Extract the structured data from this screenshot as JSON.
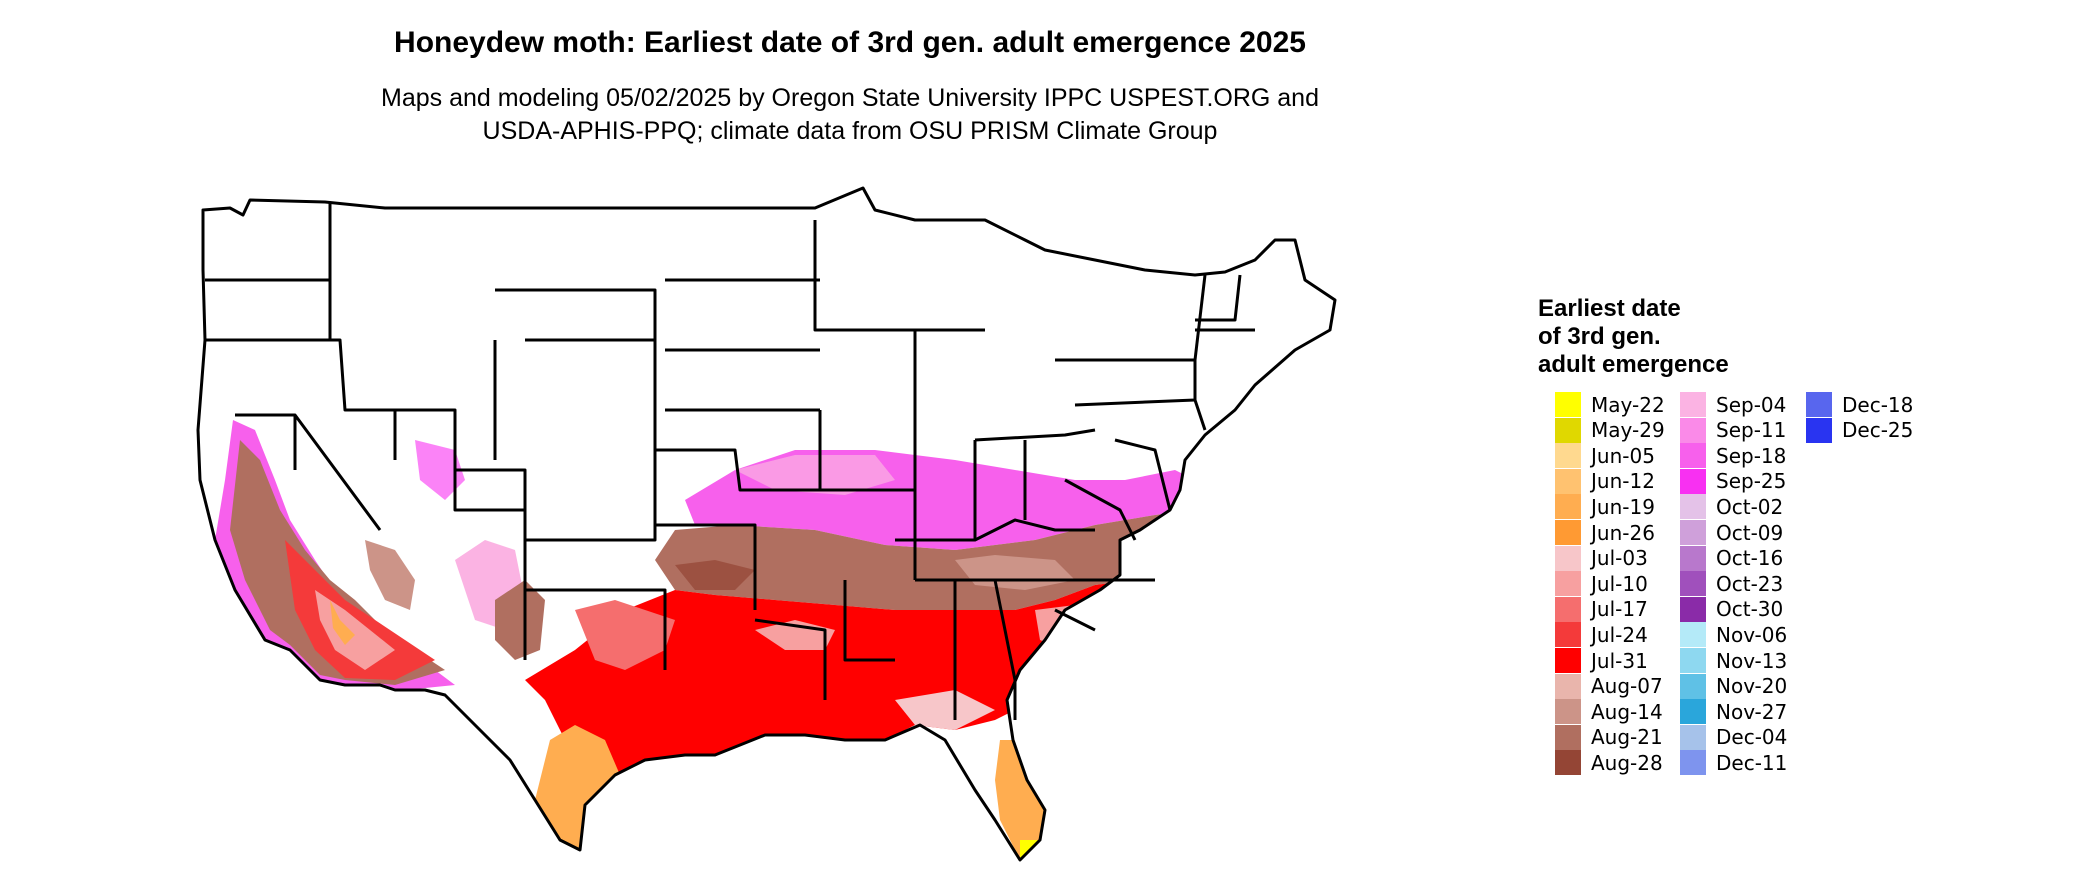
{
  "title": "Honeydew moth: Earliest date of 3rd gen. adult emergence 2025",
  "subtitle_line1": "Maps and modeling 05/02/2025 by Oregon State University IPPC USPEST.ORG and",
  "subtitle_line2": "USDA-APHIS-PPQ; climate data from OSU PRISM Climate Group",
  "legend": {
    "title_lines": [
      "Earliest date",
      "of 3rd gen.",
      "adult emergence"
    ],
    "items": [
      {
        "label": "May-22",
        "color": "#FFFF00"
      },
      {
        "label": "May-29",
        "color": "#E0D800"
      },
      {
        "label": "Jun-05",
        "color": "#FFD98F"
      },
      {
        "label": "Jun-12",
        "color": "#FFC270"
      },
      {
        "label": "Jun-19",
        "color": "#FFAD50"
      },
      {
        "label": "Jun-26",
        "color": "#FF9A33"
      },
      {
        "label": "Jul-03",
        "color": "#F7C6C9"
      },
      {
        "label": "Jul-10",
        "color": "#F7A0A0"
      },
      {
        "label": "Jul-17",
        "color": "#F56E6E"
      },
      {
        "label": "Jul-24",
        "color": "#F43A3A"
      },
      {
        "label": "Jul-31",
        "color": "#FF0000"
      },
      {
        "label": "Aug-07",
        "color": "#E9B5AC"
      },
      {
        "label": "Aug-14",
        "color": "#CC9488"
      },
      {
        "label": "Aug-21",
        "color": "#B06F60"
      },
      {
        "label": "Aug-28",
        "color": "#944535"
      },
      {
        "label": "Sep-04",
        "color": "#FBB3E3"
      },
      {
        "label": "Sep-11",
        "color": "#FA8AE8"
      },
      {
        "label": "Sep-18",
        "color": "#F760EC"
      },
      {
        "label": "Sep-25",
        "color": "#F830F2"
      },
      {
        "label": "Oct-02",
        "color": "#E4C2E8"
      },
      {
        "label": "Oct-09",
        "color": "#CFA0DA"
      },
      {
        "label": "Oct-16",
        "color": "#B878CC"
      },
      {
        "label": "Oct-23",
        "color": "#A050BC"
      },
      {
        "label": "Oct-30",
        "color": "#8A2BA8"
      },
      {
        "label": "Nov-06",
        "color": "#B4EAF8"
      },
      {
        "label": "Nov-13",
        "color": "#8ED8F0"
      },
      {
        "label": "Nov-20",
        "color": "#5FC1E6"
      },
      {
        "label": "Nov-27",
        "color": "#2AA6DB"
      },
      {
        "label": "Dec-04",
        "color": "#A6C2EA"
      },
      {
        "label": "Dec-11",
        "color": "#7E94EE"
      },
      {
        "label": "Dec-18",
        "color": "#5866EE"
      },
      {
        "label": "Dec-25",
        "color": "#2934F1"
      }
    ]
  }
}
